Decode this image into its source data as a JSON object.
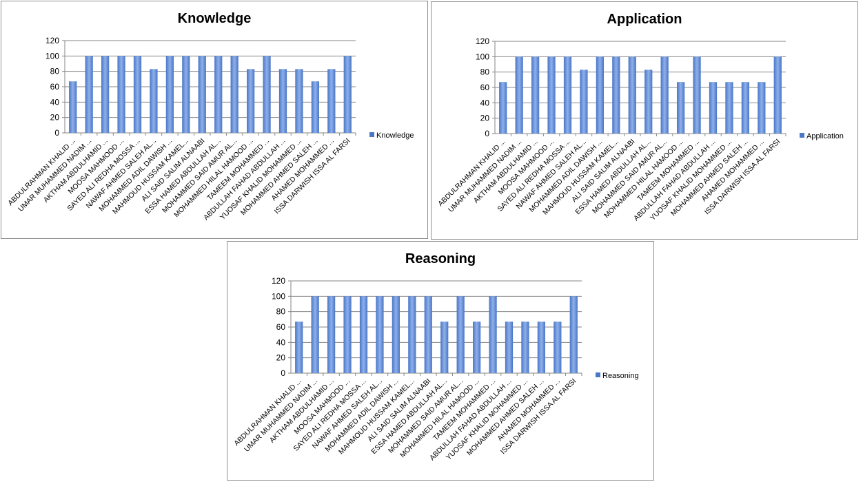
{
  "chart_data": [
    {
      "type": "bar",
      "title": "Knowledge",
      "legend": "Knowledge",
      "legend_position": "right",
      "ylim": [
        0,
        120
      ],
      "yticks": [
        0,
        20,
        40,
        60,
        80,
        100,
        120
      ],
      "grid": true,
      "categories": [
        "ABDULRAHMAN KHALID ...",
        "UMAR MUHAMMED  NADIM ...",
        "AKTHAM ABDULHAMID ...",
        "MOOSA MAHMOOD ...",
        "SAYED ALI REDHA  MOSSA ...",
        "NAWAF AHMED SALEH AL...",
        "MOHAMMED ADIL DAWISH ...",
        "MAHMOUD HUSSAM  KAMEL...",
        "ALI  SAID SALIM ALNAABI",
        "ESSA HAMED  ABDULLAH AL...",
        "MOHAMMED  SAID AMUR AL...",
        "MOHAMMED HILAL HAMOOD ...",
        "TAMEEM MOHAMMED ...",
        "ABDULLAH FAHAD ABDULLAH ...",
        "YUOSAF KHALID MOHAMMED ...",
        "MOHAMMED AHMED SALEH ...",
        "AHAMED MOHAMMED ...",
        "ISSA DARWISH ISSA AL FARSI"
      ],
      "values": [
        67,
        100,
        100,
        100,
        100,
        83,
        100,
        100,
        100,
        100,
        100,
        83,
        100,
        83,
        83,
        67,
        83,
        100
      ]
    },
    {
      "type": "bar",
      "title": "Application",
      "legend": "Application",
      "legend_position": "right",
      "ylim": [
        0,
        120
      ],
      "yticks": [
        0,
        20,
        40,
        60,
        80,
        100,
        120
      ],
      "grid": true,
      "categories": [
        "ABDULRAHMAN KHALID ...",
        "UMAR MUHAMMED  NADIM ...",
        "AKTHAM ABDULHAMID ...",
        "MOOSA MAHMOOD ...",
        "SAYED ALI REDHA  MOSSA ...",
        "NAWAF AHMED SALEH AL...",
        "MOHAMMED ADIL DAWISH ...",
        "MAHMOUD HUSSAM  KAMEL...",
        "ALI  SAID SALIM ALNAABI",
        "ESSA HAMED  ABDULLAH AL...",
        "MOHAMMED  SAID AMUR AL...",
        "MOHAMMED HILAL HAMOOD ...",
        "TAMEEM MOHAMMED ...",
        "ABDULLAH FAHAD ABDULLAH ...",
        "YUOSAF KHALID MOHAMMED ...",
        "MOHAMMED AHMED SALEH ...",
        "AHAMED MOHAMMED ...",
        "ISSA DARWISH ISSA AL FARSI"
      ],
      "values": [
        67,
        100,
        100,
        100,
        100,
        83,
        100,
        100,
        100,
        83,
        100,
        67,
        100,
        67,
        67,
        67,
        67,
        100
      ]
    },
    {
      "type": "bar",
      "title": "Reasoning",
      "legend": "Reasoning",
      "legend_position": "right",
      "ylim": [
        0,
        120
      ],
      "yticks": [
        0,
        20,
        40,
        60,
        80,
        100,
        120
      ],
      "grid": true,
      "categories": [
        "ABDULRAHMAN KHALID ...",
        "UMAR MUHAMMED  NADIM ...",
        "AKTHAM ABDULHAMID ...",
        "MOOSA MAHMOOD ...",
        "SAYED ALI REDHA  MOSSA ...",
        "NAWAF AHMED SALEH AL...",
        "MOHAMMED ADIL DAWISH ...",
        "MAHMOUD HUSSAM  KAMEL...",
        "ALI  SAID SALIM ALNAABI",
        "ESSA HAMED  ABDULLAH AL...",
        "MOHAMMED  SAID AMUR AL...",
        "MOHAMMED HILAL HAMOOD ...",
        "TAMEEM MOHAMMED ...",
        "ABDULLAH FAHAD ABDULLAH ...",
        "YUOSAF KHALID MOHAMMED ...",
        "MOHAMMED AHMED SALEH ...",
        "AHAMED MOHAMMED ...",
        "ISSA DARWISH ISSA AL FARSI"
      ],
      "values": [
        67,
        100,
        100,
        100,
        100,
        100,
        100,
        100,
        100,
        67,
        100,
        67,
        100,
        67,
        67,
        67,
        67,
        100
      ]
    }
  ],
  "colors": {
    "bar": "#4a76c6",
    "bar_light": "#8fb0ea",
    "grid": "#868686"
  }
}
